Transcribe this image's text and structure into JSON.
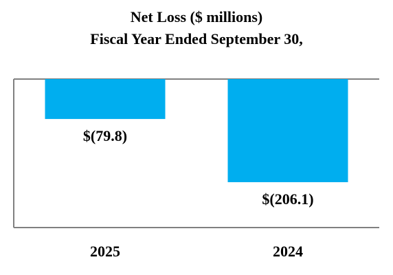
{
  "chart_data": {
    "type": "bar",
    "title": "Net Loss ($ millions)",
    "subtitle": "Fiscal Year Ended September 30,",
    "categories": [
      "2025",
      "2024"
    ],
    "values": [
      -79.8,
      -206.1
    ],
    "value_labels": [
      "$(79.8)",
      "$(206.1)"
    ],
    "xlabel": "",
    "ylabel": "",
    "ylim": [
      -290,
      0
    ],
    "grid": false,
    "legend": "none",
    "colors": {
      "bar": "#00AEEF",
      "axis": "#808080",
      "text": "#000000"
    }
  }
}
